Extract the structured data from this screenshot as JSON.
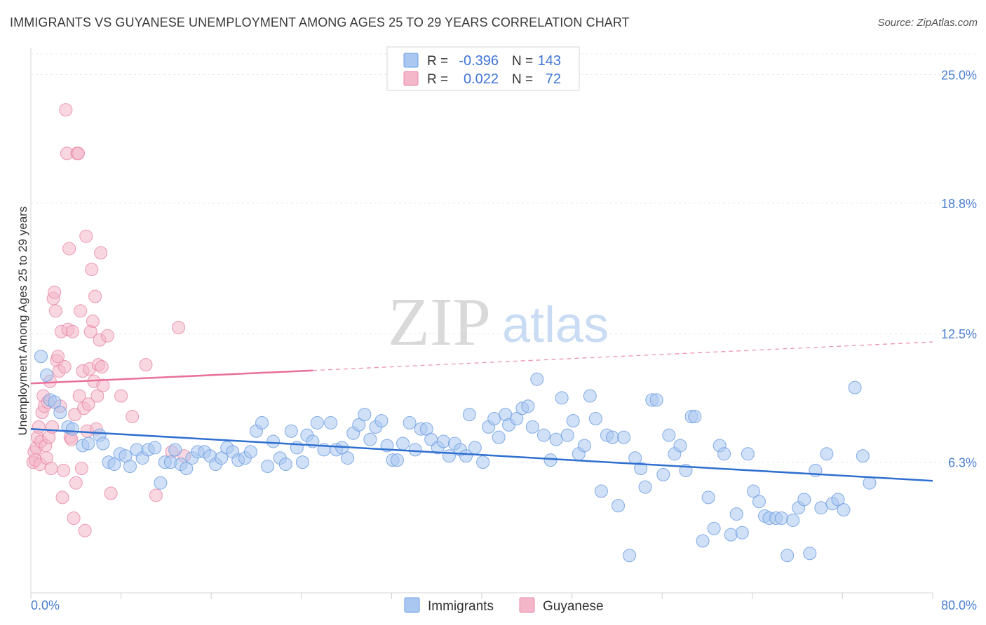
{
  "title": "IMMIGRANTS VS GUYANESE UNEMPLOYMENT AMONG AGES 25 TO 29 YEARS CORRELATION CHART",
  "source": "Source: ZipAtlas.com",
  "watermark": {
    "zip": "ZIP",
    "atlas": "atlas"
  },
  "legend_box": {
    "rows": [
      {
        "r_label": "R =",
        "r_value": "-0.396",
        "n_label": "N =",
        "n_value": "143",
        "color": "#a9c7f0"
      },
      {
        "r_label": "R =",
        "r_value": "0.022",
        "n_label": "N =",
        "n_value": "72",
        "color": "#f4b6c9"
      }
    ]
  },
  "bottom_legend": [
    {
      "label": "Immigrants",
      "color": "#a9c7f0"
    },
    {
      "label": "Guyanese",
      "color": "#f4b6c9"
    }
  ],
  "chart_data": {
    "type": "scatter",
    "title": "IMMIGRANTS VS GUYANESE UNEMPLOYMENT AMONG AGES 25 TO 29 YEARS CORRELATION CHART",
    "xlabel": "",
    "ylabel": "Unemployment Among Ages 25 to 29 years",
    "xlim": [
      0,
      80
    ],
    "ylim": [
      0,
      26.3
    ],
    "x_tick_labels": [
      "0.0%",
      "80.0%"
    ],
    "y_ticks": [
      6.3,
      12.5,
      18.8,
      25.0
    ],
    "y_tick_labels": [
      "6.3%",
      "12.5%",
      "18.8%",
      "25.0%"
    ],
    "grid": true,
    "legend_position": "top-center",
    "series": [
      {
        "name": "Immigrants",
        "color": "#a9c7f0",
        "stroke": "#6e9fe0",
        "trend": {
          "x": [
            0,
            80
          ],
          "y": [
            7.9,
            5.4
          ],
          "color": "#2f6fcf",
          "dashed_from": null
        },
        "points": [
          [
            0.9,
            11.4
          ],
          [
            1.4,
            10.5
          ],
          [
            1.7,
            9.3
          ],
          [
            2.1,
            9.2
          ],
          [
            2.6,
            8.7
          ],
          [
            3.3,
            8.0
          ],
          [
            3.7,
            7.9
          ],
          [
            4.6,
            7.1
          ],
          [
            5.1,
            7.2
          ],
          [
            6.1,
            7.6
          ],
          [
            6.4,
            7.2
          ],
          [
            6.9,
            6.3
          ],
          [
            7.4,
            6.2
          ],
          [
            7.9,
            6.7
          ],
          [
            8.4,
            6.6
          ],
          [
            8.8,
            6.1
          ],
          [
            9.4,
            6.9
          ],
          [
            9.9,
            6.5
          ],
          [
            10.4,
            6.9
          ],
          [
            11.0,
            7.0
          ],
          [
            11.5,
            5.3
          ],
          [
            11.9,
            6.3
          ],
          [
            12.4,
            6.3
          ],
          [
            12.8,
            6.9
          ],
          [
            13.3,
            6.2
          ],
          [
            13.8,
            6.0
          ],
          [
            14.3,
            6.5
          ],
          [
            14.8,
            6.8
          ],
          [
            15.4,
            6.8
          ],
          [
            15.9,
            6.6
          ],
          [
            16.4,
            6.2
          ],
          [
            16.9,
            6.5
          ],
          [
            17.4,
            7.0
          ],
          [
            17.9,
            6.8
          ],
          [
            18.4,
            6.4
          ],
          [
            19.0,
            6.5
          ],
          [
            19.5,
            6.8
          ],
          [
            20.0,
            7.8
          ],
          [
            20.5,
            8.2
          ],
          [
            21.0,
            6.1
          ],
          [
            21.5,
            7.3
          ],
          [
            22.1,
            6.5
          ],
          [
            22.6,
            6.2
          ],
          [
            23.1,
            7.8
          ],
          [
            23.6,
            7.0
          ],
          [
            24.1,
            6.3
          ],
          [
            24.5,
            7.6
          ],
          [
            25.0,
            7.3
          ],
          [
            25.4,
            8.2
          ],
          [
            26.0,
            6.9
          ],
          [
            26.6,
            8.2
          ],
          [
            27.1,
            6.9
          ],
          [
            27.6,
            7.0
          ],
          [
            28.1,
            6.5
          ],
          [
            28.6,
            7.7
          ],
          [
            29.1,
            8.1
          ],
          [
            29.6,
            8.6
          ],
          [
            30.1,
            7.4
          ],
          [
            30.6,
            8.0
          ],
          [
            31.1,
            8.3
          ],
          [
            31.6,
            7.1
          ],
          [
            32.1,
            6.4
          ],
          [
            32.5,
            6.4
          ],
          [
            33.0,
            7.2
          ],
          [
            33.6,
            8.2
          ],
          [
            34.1,
            6.9
          ],
          [
            34.6,
            7.9
          ],
          [
            35.1,
            7.9
          ],
          [
            35.5,
            7.4
          ],
          [
            36.1,
            7.0
          ],
          [
            36.6,
            7.3
          ],
          [
            37.1,
            6.6
          ],
          [
            37.6,
            7.2
          ],
          [
            38.1,
            6.9
          ],
          [
            38.6,
            6.6
          ],
          [
            38.9,
            8.6
          ],
          [
            39.4,
            7.0
          ],
          [
            40.1,
            6.3
          ],
          [
            40.6,
            8.0
          ],
          [
            41.1,
            8.4
          ],
          [
            41.5,
            7.5
          ],
          [
            42.1,
            8.6
          ],
          [
            42.4,
            8.1
          ],
          [
            43.1,
            8.4
          ],
          [
            43.6,
            8.9
          ],
          [
            44.1,
            9.0
          ],
          [
            44.5,
            8.0
          ],
          [
            44.9,
            10.3
          ],
          [
            45.5,
            7.6
          ],
          [
            46.1,
            6.4
          ],
          [
            46.6,
            7.4
          ],
          [
            47.1,
            9.4
          ],
          [
            47.6,
            7.6
          ],
          [
            48.1,
            8.3
          ],
          [
            48.6,
            6.7
          ],
          [
            49.1,
            7.1
          ],
          [
            49.6,
            9.5
          ],
          [
            50.1,
            8.4
          ],
          [
            50.6,
            4.9
          ],
          [
            51.1,
            7.6
          ],
          [
            51.6,
            7.5
          ],
          [
            52.1,
            4.2
          ],
          [
            52.6,
            7.5
          ],
          [
            53.1,
            1.8
          ],
          [
            53.6,
            6.5
          ],
          [
            54.1,
            6.0
          ],
          [
            54.5,
            5.1
          ],
          [
            55.1,
            9.3
          ],
          [
            55.5,
            9.3
          ],
          [
            56.1,
            5.7
          ],
          [
            56.6,
            7.6
          ],
          [
            57.1,
            6.7
          ],
          [
            57.6,
            7.1
          ],
          [
            58.1,
            5.9
          ],
          [
            58.6,
            8.5
          ],
          [
            58.9,
            8.5
          ],
          [
            59.6,
            2.5
          ],
          [
            60.1,
            4.6
          ],
          [
            60.6,
            3.1
          ],
          [
            61.1,
            7.1
          ],
          [
            61.5,
            6.7
          ],
          [
            62.1,
            2.8
          ],
          [
            62.6,
            3.8
          ],
          [
            63.1,
            2.9
          ],
          [
            63.6,
            6.7
          ],
          [
            64.1,
            4.9
          ],
          [
            64.6,
            4.4
          ],
          [
            65.1,
            3.7
          ],
          [
            65.5,
            3.6
          ],
          [
            66.1,
            3.6
          ],
          [
            66.6,
            3.6
          ],
          [
            67.1,
            1.8
          ],
          [
            67.6,
            3.5
          ],
          [
            68.1,
            4.1
          ],
          [
            68.6,
            4.5
          ],
          [
            69.1,
            1.9
          ],
          [
            69.6,
            5.9
          ],
          [
            70.1,
            4.1
          ],
          [
            70.6,
            6.7
          ],
          [
            71.1,
            4.3
          ],
          [
            71.6,
            4.5
          ],
          [
            72.1,
            4.0
          ],
          [
            73.1,
            9.9
          ],
          [
            73.8,
            6.6
          ],
          [
            74.4,
            5.3
          ]
        ]
      },
      {
        "name": "Guyanese",
        "color": "#f4b6c9",
        "stroke": "#e88aa8",
        "trend": {
          "x": [
            0,
            80
          ],
          "y": [
            10.1,
            12.1
          ],
          "color": "#e8709a",
          "dashed_from": 25
        },
        "points": [
          [
            0.2,
            6.3
          ],
          [
            0.3,
            6.8
          ],
          [
            0.4,
            6.4
          ],
          [
            0.5,
            7.0
          ],
          [
            0.6,
            7.5
          ],
          [
            0.7,
            8.0
          ],
          [
            0.8,
            6.2
          ],
          [
            0.9,
            7.3
          ],
          [
            1.0,
            8.7
          ],
          [
            1.1,
            9.5
          ],
          [
            1.2,
            9.0
          ],
          [
            1.3,
            7.1
          ],
          [
            1.4,
            6.5
          ],
          [
            1.5,
            9.2
          ],
          [
            1.6,
            7.5
          ],
          [
            1.7,
            10.2
          ],
          [
            1.8,
            6.0
          ],
          [
            1.9,
            8.0
          ],
          [
            2.0,
            14.2
          ],
          [
            2.1,
            14.5
          ],
          [
            2.2,
            13.6
          ],
          [
            2.3,
            11.2
          ],
          [
            2.4,
            11.4
          ],
          [
            2.5,
            10.7
          ],
          [
            2.6,
            9.0
          ],
          [
            2.7,
            12.6
          ],
          [
            2.8,
            4.6
          ],
          [
            2.9,
            5.9
          ],
          [
            3.0,
            10.9
          ],
          [
            3.1,
            23.3
          ],
          [
            3.2,
            21.2
          ],
          [
            3.3,
            12.7
          ],
          [
            3.4,
            16.6
          ],
          [
            3.5,
            7.5
          ],
          [
            3.6,
            7.4
          ],
          [
            3.7,
            12.6
          ],
          [
            3.8,
            3.6
          ],
          [
            3.9,
            8.6
          ],
          [
            4.0,
            5.3
          ],
          [
            4.1,
            21.2
          ],
          [
            4.2,
            21.2
          ],
          [
            4.3,
            9.5
          ],
          [
            4.4,
            13.6
          ],
          [
            4.5,
            6.0
          ],
          [
            4.6,
            10.7
          ],
          [
            4.7,
            8.9
          ],
          [
            4.8,
            3.0
          ],
          [
            4.9,
            17.2
          ],
          [
            5.0,
            7.8
          ],
          [
            5.1,
            9.1
          ],
          [
            5.2,
            10.8
          ],
          [
            5.3,
            12.6
          ],
          [
            5.4,
            15.6
          ],
          [
            5.5,
            13.1
          ],
          [
            5.6,
            10.2
          ],
          [
            5.7,
            14.3
          ],
          [
            5.8,
            7.9
          ],
          [
            5.9,
            9.5
          ],
          [
            6.0,
            11.0
          ],
          [
            6.1,
            12.2
          ],
          [
            6.2,
            16.4
          ],
          [
            6.3,
            10.9
          ],
          [
            6.4,
            10.0
          ],
          [
            6.8,
            12.4
          ],
          [
            7.1,
            4.8
          ],
          [
            8.0,
            9.5
          ],
          [
            9.0,
            8.5
          ],
          [
            10.2,
            11.0
          ],
          [
            11.1,
            4.7
          ],
          [
            12.5,
            6.8
          ],
          [
            13.1,
            12.8
          ],
          [
            13.6,
            6.6
          ]
        ]
      }
    ]
  }
}
